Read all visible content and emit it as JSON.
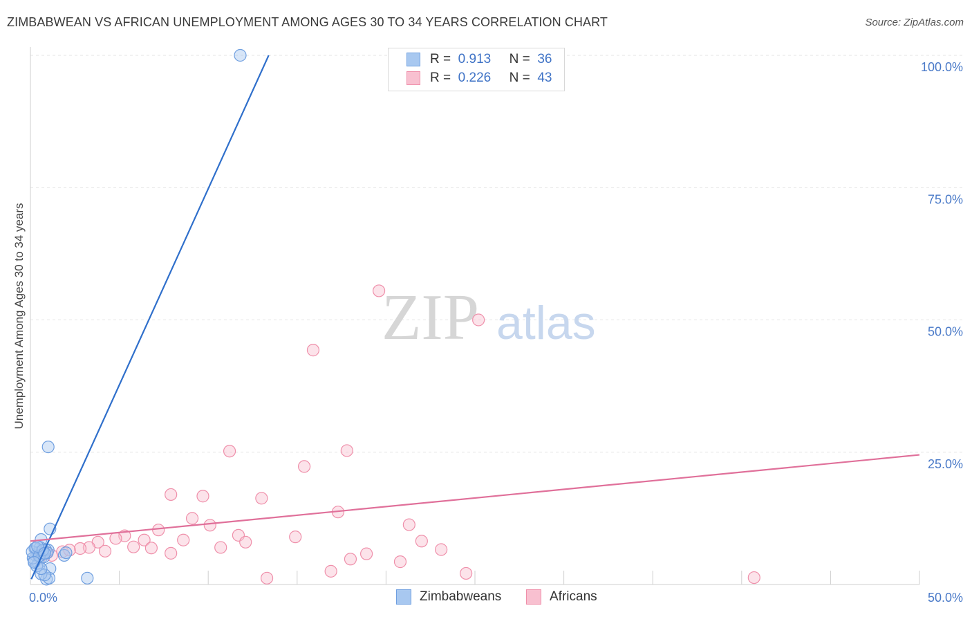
{
  "header": {
    "title": "ZIMBABWEAN VS AFRICAN UNEMPLOYMENT AMONG AGES 30 TO 34 YEARS CORRELATION CHART",
    "source": "Source: ZipAtlas.com"
  },
  "watermark": {
    "zip": "ZIP",
    "atlas": "atlas"
  },
  "legend": {
    "rows": [
      {
        "r_label": "R =",
        "r_value": "0.913",
        "n_label": "N =",
        "n_value": "36",
        "color": "#a8c8f0",
        "border": "#6f9fe0"
      },
      {
        "r_label": "R =",
        "r_value": "0.226",
        "n_label": "N =",
        "n_value": "43",
        "color": "#f8c0d0",
        "border": "#ef8faa"
      }
    ]
  },
  "bottom_legend": {
    "items": [
      {
        "label": "Zimbabweans",
        "color": "#a8c8f0",
        "border": "#6f9fe0"
      },
      {
        "label": "Africans",
        "color": "#f8c0d0",
        "border": "#ef8faa"
      }
    ]
  },
  "chart_data": {
    "type": "scatter",
    "title": "ZIMBABWEAN VS AFRICAN UNEMPLOYMENT AMONG AGES 30 TO 34 YEARS CORRELATION CHART",
    "xlabel": "",
    "ylabel": "Unemployment Among Ages 30 to 34 years",
    "xlim": [
      0,
      50
    ],
    "ylim": [
      0,
      100
    ],
    "x_tick_labels": [
      {
        "value": 0,
        "label": "0.0%"
      },
      {
        "value": 50,
        "label": "50.0%"
      }
    ],
    "y_tick_labels": [
      {
        "value": 100,
        "label": "100.0%"
      },
      {
        "value": 75,
        "label": "75.0%"
      },
      {
        "value": 50,
        "label": "50.0%"
      },
      {
        "value": 25,
        "label": "25.0%"
      }
    ],
    "y_gridlines": [
      25,
      50,
      75,
      100
    ],
    "x_minor_ticks": [
      0,
      5,
      10,
      15,
      20,
      25,
      30,
      35,
      40,
      45,
      50
    ],
    "series": [
      {
        "name": "Zimbabweans",
        "color": "#6f9fe0",
        "fill": "#a8c8f0",
        "line_color": "#2f6fcb",
        "r": 0.913,
        "n": 36,
        "trend": {
          "x": [
            0.05,
            13.4
          ],
          "y": [
            1.0,
            100.0
          ]
        },
        "points": [
          {
            "x": 11.8,
            "y": 100.0
          },
          {
            "x": 1.0,
            "y": 26.0
          },
          {
            "x": 1.1,
            "y": 10.5
          },
          {
            "x": 0.6,
            "y": 8.5
          },
          {
            "x": 1.9,
            "y": 5.5
          },
          {
            "x": 2.0,
            "y": 6.0
          },
          {
            "x": 1.0,
            "y": 6.5
          },
          {
            "x": 1.1,
            "y": 3.0
          },
          {
            "x": 3.2,
            "y": 1.2
          },
          {
            "x": 0.9,
            "y": 1.0
          },
          {
            "x": 1.05,
            "y": 1.2
          },
          {
            "x": 0.6,
            "y": 2.0
          },
          {
            "x": 0.8,
            "y": 1.8
          },
          {
            "x": 0.2,
            "y": 4.5
          },
          {
            "x": 0.3,
            "y": 5.5
          },
          {
            "x": 0.4,
            "y": 6.0
          },
          {
            "x": 0.25,
            "y": 6.8
          },
          {
            "x": 0.5,
            "y": 6.2
          },
          {
            "x": 0.6,
            "y": 5.0
          },
          {
            "x": 0.7,
            "y": 5.8
          },
          {
            "x": 0.45,
            "y": 4.0
          },
          {
            "x": 0.35,
            "y": 3.5
          },
          {
            "x": 0.55,
            "y": 7.0
          },
          {
            "x": 0.65,
            "y": 6.3
          },
          {
            "x": 0.75,
            "y": 5.2
          },
          {
            "x": 0.85,
            "y": 6.6
          },
          {
            "x": 0.95,
            "y": 6.0
          },
          {
            "x": 0.15,
            "y": 5.0
          },
          {
            "x": 0.1,
            "y": 6.2
          },
          {
            "x": 0.3,
            "y": 6.9
          },
          {
            "x": 0.5,
            "y": 5.4
          },
          {
            "x": 0.7,
            "y": 6.5
          },
          {
            "x": 0.4,
            "y": 7.2
          },
          {
            "x": 0.6,
            "y": 3.0
          },
          {
            "x": 0.2,
            "y": 4.2
          },
          {
            "x": 0.8,
            "y": 5.9
          }
        ]
      },
      {
        "name": "Africans",
        "color": "#ef8faa",
        "fill": "#f8c0d0",
        "line_color": "#e0709a",
        "r": 0.226,
        "n": 43,
        "trend": {
          "x": [
            0,
            50
          ],
          "y": [
            8.2,
            24.5
          ]
        },
        "points": [
          {
            "x": 19.6,
            "y": 55.5
          },
          {
            "x": 25.2,
            "y": 50.0
          },
          {
            "x": 15.9,
            "y": 44.3
          },
          {
            "x": 11.2,
            "y": 25.2
          },
          {
            "x": 17.8,
            "y": 25.3
          },
          {
            "x": 15.4,
            "y": 22.3
          },
          {
            "x": 7.9,
            "y": 17.0
          },
          {
            "x": 9.7,
            "y": 16.7
          },
          {
            "x": 13.0,
            "y": 16.3
          },
          {
            "x": 17.3,
            "y": 13.7
          },
          {
            "x": 9.1,
            "y": 12.5
          },
          {
            "x": 10.1,
            "y": 11.2
          },
          {
            "x": 21.3,
            "y": 11.3
          },
          {
            "x": 7.2,
            "y": 10.3
          },
          {
            "x": 5.3,
            "y": 9.2
          },
          {
            "x": 11.7,
            "y": 9.3
          },
          {
            "x": 14.9,
            "y": 9.0
          },
          {
            "x": 4.8,
            "y": 8.7
          },
          {
            "x": 6.4,
            "y": 8.4
          },
          {
            "x": 8.6,
            "y": 8.4
          },
          {
            "x": 3.8,
            "y": 8.0
          },
          {
            "x": 12.1,
            "y": 8.0
          },
          {
            "x": 22.0,
            "y": 8.2
          },
          {
            "x": 10.7,
            "y": 7.0
          },
          {
            "x": 5.8,
            "y": 7.1
          },
          {
            "x": 6.8,
            "y": 6.9
          },
          {
            "x": 3.3,
            "y": 7.0
          },
          {
            "x": 2.8,
            "y": 6.8
          },
          {
            "x": 4.2,
            "y": 6.3
          },
          {
            "x": 7.9,
            "y": 5.9
          },
          {
            "x": 23.1,
            "y": 6.6
          },
          {
            "x": 18.9,
            "y": 5.8
          },
          {
            "x": 18.0,
            "y": 4.8
          },
          {
            "x": 20.8,
            "y": 4.3
          },
          {
            "x": 16.9,
            "y": 2.5
          },
          {
            "x": 24.5,
            "y": 2.1
          },
          {
            "x": 13.3,
            "y": 1.2
          },
          {
            "x": 40.7,
            "y": 1.3
          },
          {
            "x": 1.8,
            "y": 6.2
          },
          {
            "x": 1.2,
            "y": 5.5
          },
          {
            "x": 0.9,
            "y": 6.0
          },
          {
            "x": 0.5,
            "y": 5.0
          },
          {
            "x": 2.2,
            "y": 6.5
          }
        ]
      }
    ]
  }
}
